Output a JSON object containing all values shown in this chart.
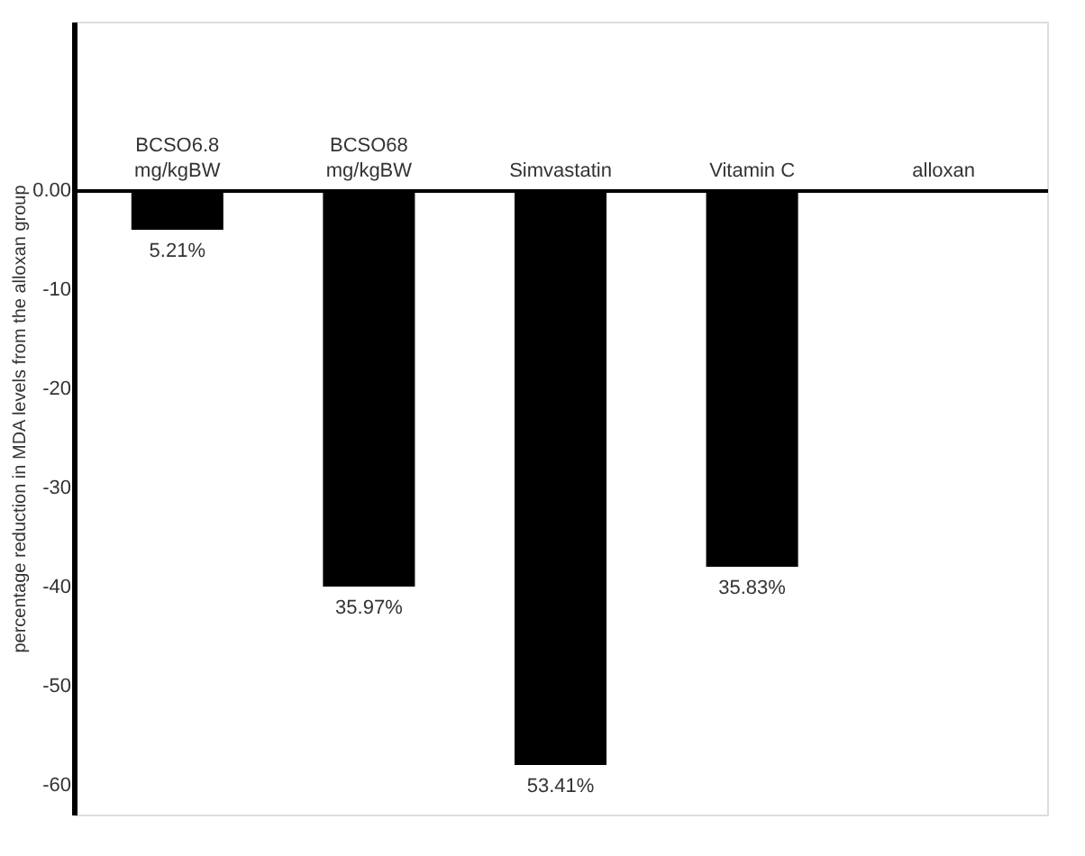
{
  "chart_data": {
    "type": "bar",
    "ylabel": "percentage reduction in MDA levels from the alloxan group",
    "categories": [
      "BCSO6.8 mg/kgBW",
      "BCSO68 mg/kgBW",
      "Simvastatin",
      "Vitamin C",
      "alloxan"
    ],
    "values": [
      -4,
      -40,
      -58,
      -38,
      0
    ],
    "annotations": [
      {
        "text": "5.21%",
        "x": "BCSO6.8 mg/kgBW",
        "y": -4
      },
      {
        "text": "35.97%",
        "x": "BCSO68 mg/kgBW",
        "y": -40
      },
      {
        "text": "53.41%",
        "x": "Simvastatin",
        "y": -58
      },
      {
        "text": "35.83%",
        "x": "Vitamin C",
        "y": -38
      }
    ],
    "color": "#000000",
    "ylim": [
      -63,
      17
    ],
    "yticks": [
      {
        "value": 0,
        "label": "0.00"
      },
      -10,
      -20,
      -30,
      -40,
      -50,
      -60
    ],
    "grid": false
  }
}
